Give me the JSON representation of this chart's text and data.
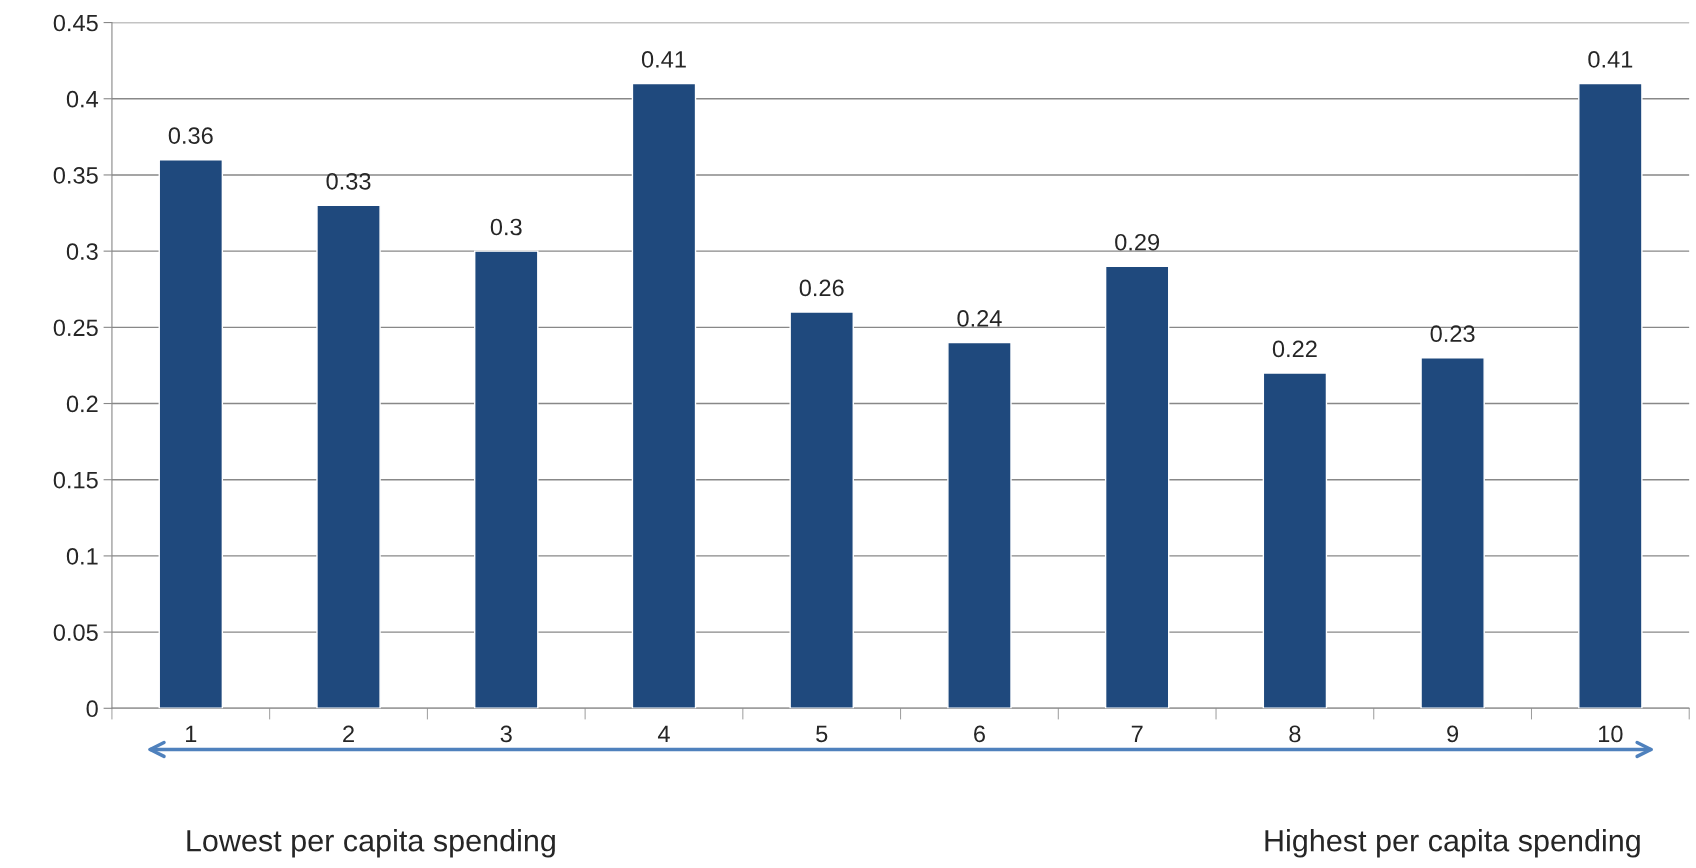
{
  "chart_data": {
    "type": "bar",
    "categories": [
      "1",
      "2",
      "3",
      "4",
      "5",
      "6",
      "7",
      "8",
      "9",
      "10"
    ],
    "values": [
      0.36,
      0.33,
      0.3,
      0.41,
      0.26,
      0.24,
      0.29,
      0.22,
      0.23,
      0.41
    ],
    "color": "#1f497d",
    "ylim": [
      0,
      0.45
    ],
    "yticks": [
      0,
      0.05,
      0.1,
      0.15,
      0.2,
      0.25,
      0.3,
      0.35,
      0.4,
      0.45
    ],
    "grid": "y",
    "data_labels": true,
    "legend": false,
    "annotations": [
      "Lowest per capita spending",
      "Highest per capita spending"
    ]
  }
}
